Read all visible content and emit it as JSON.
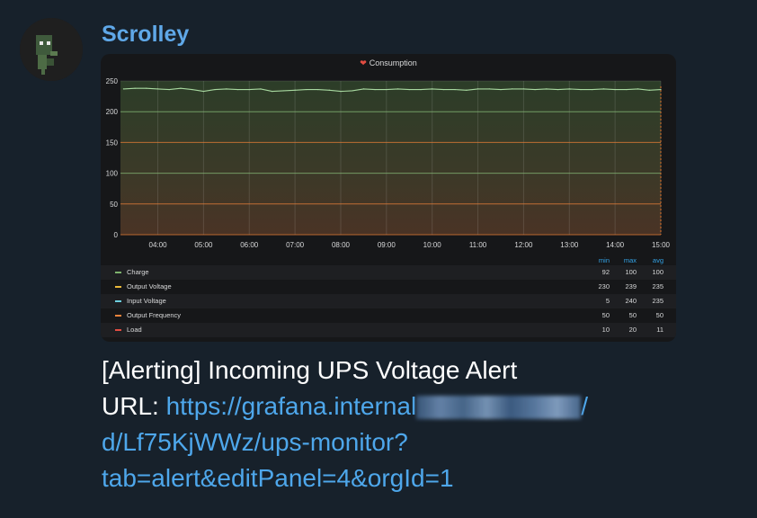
{
  "message": {
    "sender": "Scrolley",
    "alert_title": "[Alerting] Incoming UPS Voltage Alert",
    "url_label": "URL: ",
    "url_part1": "https://grafana.internal",
    "url_part2": "/",
    "url_line2": "d/Lf75KjWWz/ups-monitor?",
    "url_line3": "tab=alert&editPanel=4&orgId=1"
  },
  "colors": {
    "background": "#17212b",
    "sender": "#5fa8e8",
    "link": "#4ea7eb",
    "panel_bg": "#161719",
    "legend_header": "#33a2e5"
  },
  "chart_data": {
    "type": "line",
    "title": "Consumption",
    "title_icon": "heart-broken-icon",
    "x_ticks": [
      "04:00",
      "05:00",
      "06:00",
      "07:00",
      "08:00",
      "09:00",
      "10:00",
      "11:00",
      "12:00",
      "13:00",
      "14:00",
      "15:00"
    ],
    "y_ticks": [
      0,
      50,
      100,
      150,
      200,
      250
    ],
    "ylim": [
      0,
      250
    ],
    "grid": true,
    "thresholds": [
      {
        "value": 0,
        "color": "#e0752d"
      },
      {
        "value": 50,
        "color": "#e0752d"
      },
      {
        "value": 150,
        "color": "#e0752d"
      },
      {
        "value": 100,
        "color": "#7eb26d"
      },
      {
        "value": 200,
        "color": "#7eb26d"
      }
    ],
    "series": [
      {
        "name": "Output Voltage",
        "color": "#a8d9a0",
        "x": [
          "03:15",
          "03:30",
          "03:45",
          "04:00",
          "04:15",
          "04:30",
          "04:45",
          "05:00",
          "05:15",
          "05:30",
          "05:45",
          "06:00",
          "06:15",
          "06:30",
          "06:45",
          "07:00",
          "07:15",
          "07:30",
          "07:45",
          "08:00",
          "08:15",
          "08:30",
          "08:45",
          "09:00",
          "09:15",
          "09:30",
          "09:45",
          "10:00",
          "10:15",
          "10:30",
          "10:45",
          "11:00",
          "11:15",
          "11:30",
          "11:45",
          "12:00",
          "12:15",
          "12:30",
          "12:45",
          "13:00",
          "13:15",
          "13:30",
          "13:45",
          "14:00",
          "14:15",
          "14:30",
          "14:45",
          "15:00"
        ],
        "values": [
          237,
          238,
          238,
          237,
          236,
          238,
          236,
          233,
          236,
          237,
          236,
          236,
          237,
          233,
          234,
          235,
          236,
          236,
          235,
          233,
          234,
          237,
          236,
          236,
          237,
          236,
          236,
          237,
          236,
          236,
          235,
          237,
          237,
          236,
          237,
          237,
          236,
          237,
          236,
          237,
          236,
          236,
          237,
          236,
          236,
          237,
          235,
          236
        ]
      }
    ],
    "legend": {
      "columns": [
        "min",
        "max",
        "avg"
      ],
      "rows": [
        {
          "name": "Charge",
          "color": "#7eb26d",
          "min": "92",
          "max": "100",
          "avg": "100"
        },
        {
          "name": "Output Voltage",
          "color": "#eab839",
          "min": "230",
          "max": "239",
          "avg": "235"
        },
        {
          "name": "Input Voltage",
          "color": "#6ed0e0",
          "min": "5",
          "max": "240",
          "avg": "235"
        },
        {
          "name": "Output Frequency",
          "color": "#ef843c",
          "min": "50",
          "max": "50",
          "avg": "50"
        },
        {
          "name": "Load",
          "color": "#e24d42",
          "min": "10",
          "max": "20",
          "avg": "11"
        }
      ]
    }
  }
}
